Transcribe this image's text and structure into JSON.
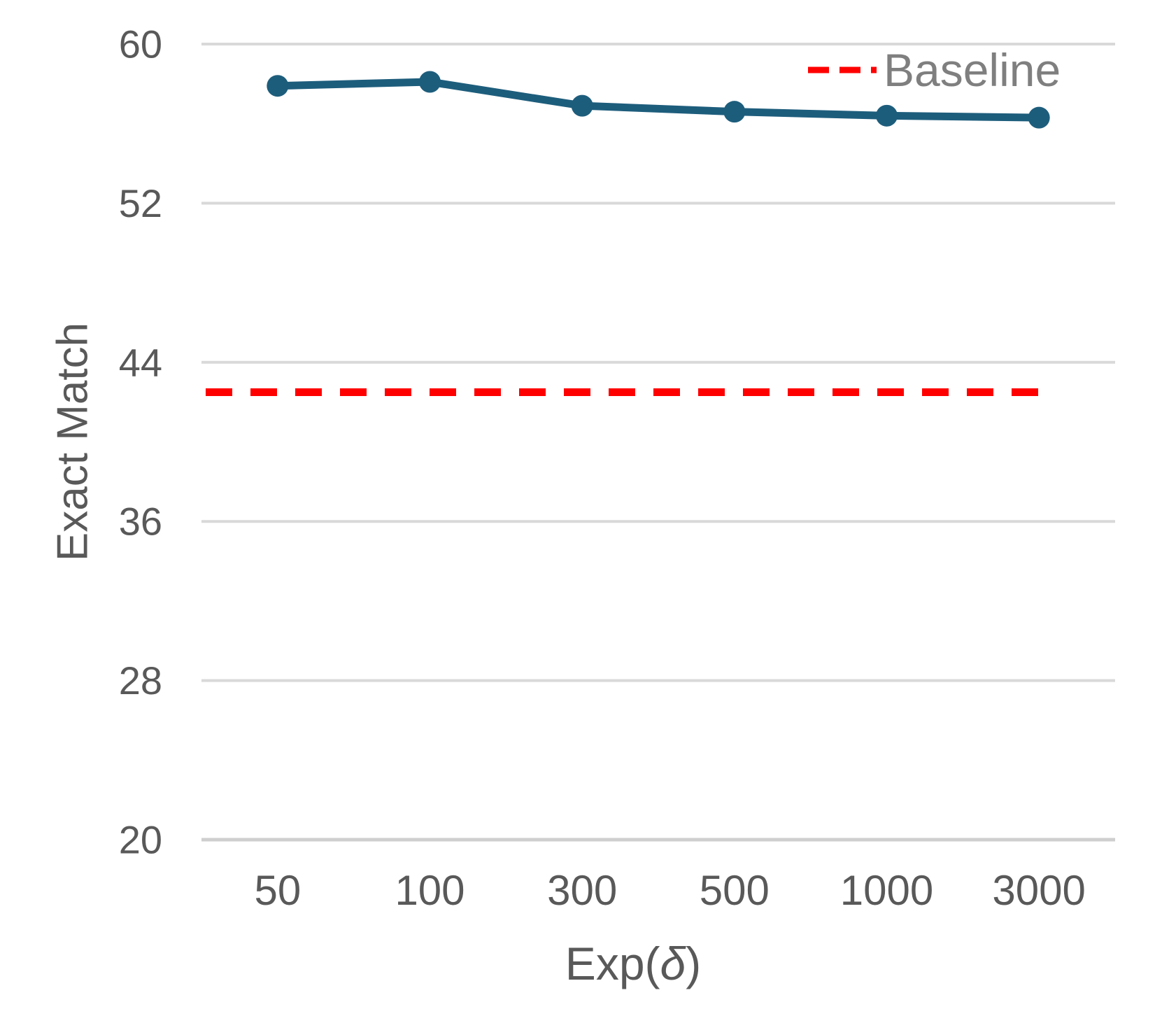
{
  "chart_data": {
    "type": "line",
    "title": "",
    "xlabel_prefix": "Exp(",
    "xlabel_symbol": "δ",
    "xlabel_suffix": ")",
    "ylabel": "Exact Match",
    "categories": [
      "50",
      "100",
      "300",
      "500",
      "1000",
      "3000"
    ],
    "y_ticks": [
      20,
      28,
      36,
      44,
      52,
      60
    ],
    "ylim": [
      20,
      60
    ],
    "grid": true,
    "legend_position": "top-right",
    "series": [
      {
        "name": "Exact Match",
        "style": "solid-markers",
        "color": "#1D5D7C",
        "values": [
          57.9,
          58.1,
          56.9,
          56.6,
          56.4,
          56.3
        ]
      },
      {
        "name": "Baseline",
        "style": "dashed-constant",
        "color": "#FF0000",
        "value": 42.5
      }
    ],
    "legend": [
      {
        "label": "Baseline",
        "color": "#FF0000",
        "line_style": "dashed"
      }
    ]
  },
  "colors": {
    "gridline": "#D9D9D9",
    "axis_line": "#CFCFCF",
    "tick_label": "#595959",
    "axis_title": "#595959",
    "legend_text": "#7F7F7F",
    "background": "#FFFFFF"
  }
}
